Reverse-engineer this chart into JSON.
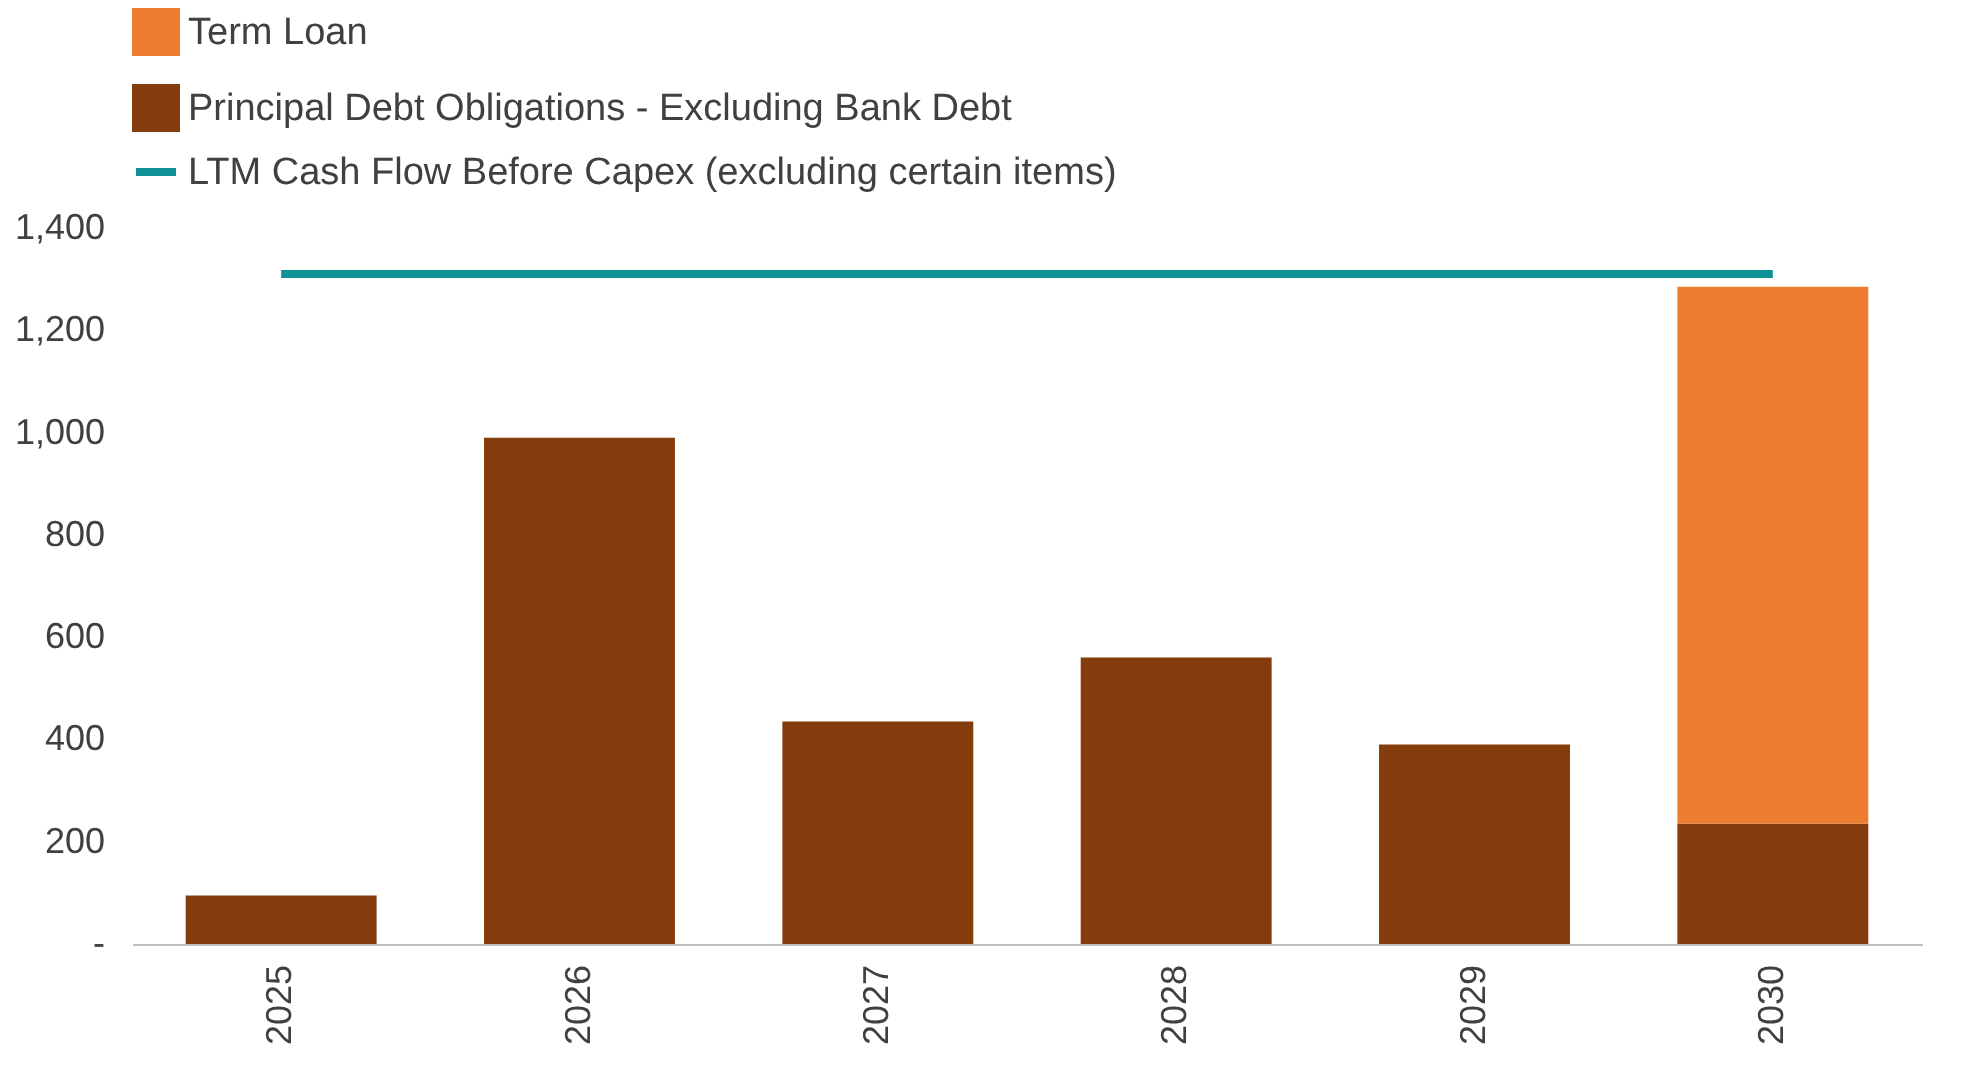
{
  "chart_data": {
    "type": "bar",
    "stacked": true,
    "categories": [
      "2025",
      "2026",
      "2027",
      "2028",
      "2029",
      "2030"
    ],
    "series": [
      {
        "name": "Principal Debt Obligations - Excluding Bank Debt",
        "color": "#843c0c",
        "values": [
          95,
          990,
          435,
          560,
          390,
          235
        ]
      },
      {
        "name": "Term Loan",
        "color": "#ed7d31",
        "values": [
          null,
          null,
          null,
          null,
          null,
          1050
        ]
      },
      {
        "name": "LTM Cash Flow Before Capex (excluding certain items)",
        "type": "line",
        "color": "#0f9196",
        "values": [
          1310,
          1310,
          1310,
          1310,
          1310,
          1310
        ]
      }
    ],
    "ylim": [
      0,
      1400
    ],
    "yticks": [
      {
        "value": 0,
        "label": "-"
      },
      200,
      400,
      600,
      800,
      {
        "value": 1000,
        "label": "1,000"
      },
      {
        "value": 1200,
        "label": "1,200"
      },
      {
        "value": 1400,
        "label": "1,400"
      }
    ],
    "grid": false,
    "legend": "top"
  }
}
